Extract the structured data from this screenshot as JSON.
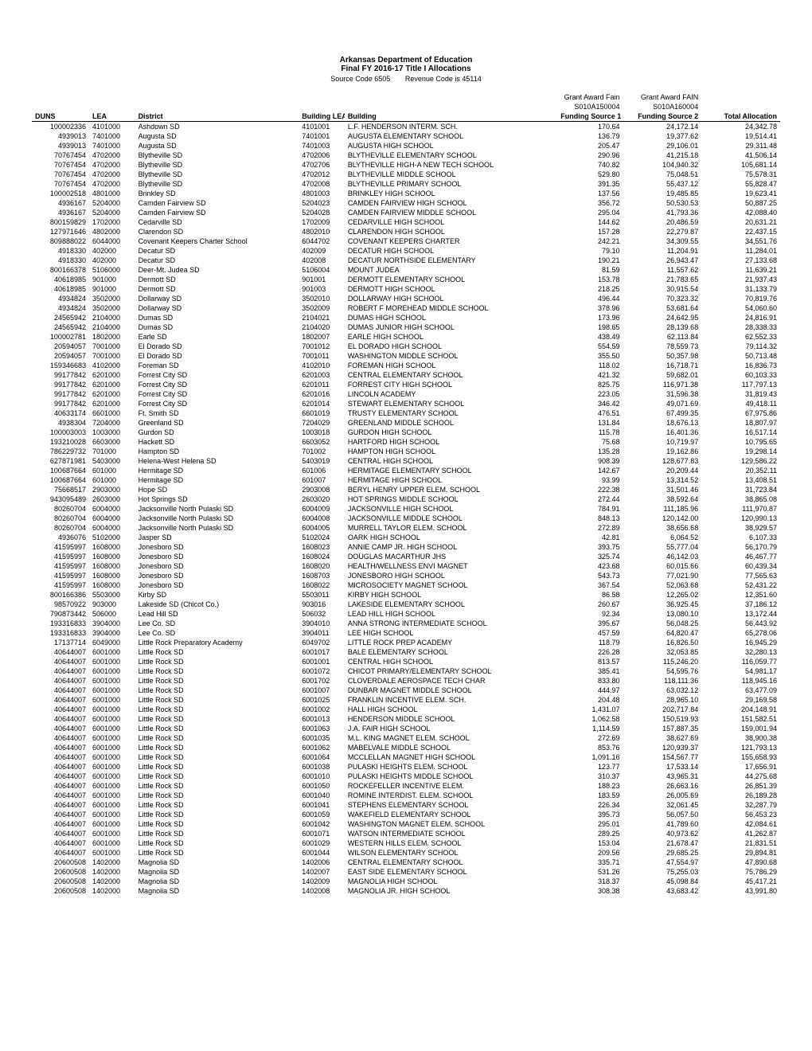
{
  "header": {
    "title": "Arkansas Department of Education",
    "subtitle": "Final FY 2016-17 Title I Allocations",
    "source_code_label": "Source Code 6505",
    "revenue_code_label": "Revenue Code is 45114"
  },
  "superheaders": {
    "col6": "Grant Award Fain",
    "col7": "Grant Award FAIN",
    "code6": "S010A150004",
    "code7": "S010A160004"
  },
  "columns": [
    "DUNS",
    "LEA",
    "District",
    "Building LEA",
    "Building",
    "Funding Source 1",
    "Funding Source 2",
    "Total Allocation"
  ],
  "rows": [
    [
      "100002336",
      "4101000",
      "Ashdown SD",
      "4101001",
      "L.F. HENDERSON INTERM. SCH.",
      "170.64",
      "24,172.14",
      "24,342.78"
    ],
    [
      "4939013",
      "7401000",
      "Augusta SD",
      "7401001",
      "AUGUSTA ELEMENTARY SCHOOL",
      "136.79",
      "19,377.62",
      "19,514.41"
    ],
    [
      "4939013",
      "7401000",
      "Augusta SD",
      "7401003",
      "AUGUSTA HIGH SCHOOL",
      "205.47",
      "29,106.01",
      "29,311.48"
    ],
    [
      "70767454",
      "4702000",
      "Blytheville SD",
      "4702006",
      "BLYTHEVILLE ELEMENTARY SCHOOL",
      "290.96",
      "41,215.18",
      "41,506.14"
    ],
    [
      "70767454",
      "4702000",
      "Blytheville SD",
      "4702706",
      "BLYTHEVILLE HIGH-A NEW TECH SCHOOL",
      "740.82",
      "104,940.32",
      "105,681.14"
    ],
    [
      "70767454",
      "4702000",
      "Blytheville SD",
      "4702012",
      "BLYTHEVILLE MIDDLE SCHOOL",
      "529.80",
      "75,048.51",
      "75,578.31"
    ],
    [
      "70767454",
      "4702000",
      "Blytheville SD",
      "4702008",
      "BLYTHEVILLE PRIMARY SCHOOL",
      "391.35",
      "55,437.12",
      "55,828.47"
    ],
    [
      "100002518",
      "4801000",
      "Brinkley SD",
      "4801003",
      "BRINKLEY HIGH SCHOOL",
      "137.56",
      "19,485.85",
      "19,623.41"
    ],
    [
      "4936167",
      "5204000",
      "Camden Fairview SD",
      "5204023",
      "CAMDEN FAIRVIEW HIGH SCHOOL",
      "356.72",
      "50,530.53",
      "50,887.25"
    ],
    [
      "4936167",
      "5204000",
      "Camden Fairview SD",
      "5204028",
      "CAMDEN FAIRVIEW MIDDLE SCHOOL",
      "295.04",
      "41,793.36",
      "42,088.40"
    ],
    [
      "800159829",
      "1702000",
      "Cedarville SD",
      "1702009",
      "CEDARVILLE HIGH SCHOOL",
      "144.62",
      "20,486.59",
      "20,631.21"
    ],
    [
      "127971646",
      "4802000",
      "Clarendon SD",
      "4802010",
      "CLARENDON HIGH SCHOOL",
      "157.28",
      "22,279.87",
      "22,437.15"
    ],
    [
      "809888022",
      "6044000",
      "Covenant Keepers Charter School",
      "6044702",
      "COVENANT KEEPERS CHARTER",
      "242.21",
      "34,309.55",
      "34,551.76"
    ],
    [
      "4918330",
      "402000",
      "Decatur SD",
      "402009",
      "DECATUR HIGH SCHOOL",
      "79.10",
      "11,204.91",
      "11,284.01"
    ],
    [
      "4918330",
      "402000",
      "Decatur SD",
      "402008",
      "DECATUR NORTHSIDE ELEMENTARY",
      "190.21",
      "26,943.47",
      "27,133.68"
    ],
    [
      "800166378",
      "5106000",
      "Deer-Mt. Judea SD",
      "5106004",
      "MOUNT JUDEA",
      "81.59",
      "11,557.62",
      "11,639.21"
    ],
    [
      "40618985",
      "901000",
      "Dermott SD",
      "901001",
      "DERMOTT ELEMENTARY SCHOOL",
      "153.78",
      "21,783.65",
      "21,937.43"
    ],
    [
      "40618985",
      "901000",
      "Dermott SD",
      "901003",
      "DERMOTT HIGH SCHOOL",
      "218.25",
      "30,915.54",
      "31,133.79"
    ],
    [
      "4934824",
      "3502000",
      "Dollarway SD",
      "3502010",
      "DOLLARWAY HIGH SCHOOL",
      "496.44",
      "70,323.32",
      "70,819.76"
    ],
    [
      "4934824",
      "3502000",
      "Dollarway SD",
      "3502009",
      "ROBERT F MOREHEAD MIDDLE SCHOOL",
      "378.96",
      "53,681.64",
      "54,060.60"
    ],
    [
      "24565942",
      "2104000",
      "Dumas SD",
      "2104021",
      "DUMAS HIGH SCHOOL",
      "173.96",
      "24,642.95",
      "24,816.91"
    ],
    [
      "24565942",
      "2104000",
      "Dumas SD",
      "2104020",
      "DUMAS JUNIOR HIGH SCHOOL",
      "198.65",
      "28,139.68",
      "28,338.33"
    ],
    [
      "100002781",
      "1802000",
      "Earle SD",
      "1802007",
      "EARLE HIGH SCHOOL",
      "438.49",
      "62,113.84",
      "62,552.33"
    ],
    [
      "20594057",
      "7001000",
      "El Dorado SD",
      "7001012",
      "EL DORADO HIGH SCHOOL",
      "554.59",
      "78,559.73",
      "79,114.32"
    ],
    [
      "20594057",
      "7001000",
      "El Dorado SD",
      "7001011",
      "WASHINGTON MIDDLE SCHOOL",
      "355.50",
      "50,357.98",
      "50,713.48"
    ],
    [
      "159346683",
      "4102000",
      "Foreman SD",
      "4102010",
      "FOREMAN HIGH SCHOOL",
      "118.02",
      "16,718.71",
      "16,836.73"
    ],
    [
      "99177842",
      "6201000",
      "Forrest City SD",
      "6201003",
      "CENTRAL ELEMENTARY SCHOOL",
      "421.32",
      "59,682.01",
      "60,103.33"
    ],
    [
      "99177842",
      "6201000",
      "Forrest City SD",
      "6201011",
      "FORREST CITY HIGH SCHOOL",
      "825.75",
      "116,971.38",
      "117,797.13"
    ],
    [
      "99177842",
      "6201000",
      "Forrest City SD",
      "6201016",
      "LINCOLN ACADEMY",
      "223.05",
      "31,596.38",
      "31,819.43"
    ],
    [
      "99177842",
      "6201000",
      "Forrest City SD",
      "6201014",
      "STEWART ELEMENTARY SCHOOL",
      "346.42",
      "49,071.69",
      "49,418.11"
    ],
    [
      "40633174",
      "6601000",
      "Ft. Smith SD",
      "6601019",
      "TRUSTY ELEMENTARY SCHOOL",
      "476.51",
      "67,499.35",
      "67,975.86"
    ],
    [
      "4938304",
      "7204000",
      "Greenland SD",
      "7204029",
      "GREENLAND MIDDLE SCHOOL",
      "131.84",
      "18,676.13",
      "18,807.97"
    ],
    [
      "100003003",
      "1003000",
      "Gurdon SD",
      "1003018",
      "GURDON HIGH SCHOOL",
      "115.78",
      "16,401.36",
      "16,517.14"
    ],
    [
      "193210028",
      "6603000",
      "Hackett SD",
      "6603052",
      "HARTFORD HIGH SCHOOL",
      "75.68",
      "10,719.97",
      "10,795.65"
    ],
    [
      "786229732",
      "701000",
      "Hampton SD",
      "701002",
      "HAMPTON HIGH SCHOOL",
      "135.28",
      "19,162.86",
      "19,298.14"
    ],
    [
      "627871981",
      "5403000",
      "Helena-West Helena SD",
      "5403019",
      "CENTRAL HIGH SCHOOL",
      "908.39",
      "128,677.83",
      "129,586.22"
    ],
    [
      "100687664",
      "601000",
      "Hermitage SD",
      "601006",
      "HERMITAGE ELEMENTARY SCHOOL",
      "142.67",
      "20,209.44",
      "20,352.11"
    ],
    [
      "100687664",
      "601000",
      "Hermitage SD",
      "601007",
      "HERMITAGE HIGH SCHOOL",
      "93.99",
      "13,314.52",
      "13,408.51"
    ],
    [
      "75668517",
      "2903000",
      "Hope SD",
      "2903008",
      "BERYL HENRY UPPER ELEM. SCHOOL",
      "222.38",
      "31,501.46",
      "31,723.84"
    ],
    [
      "943095489",
      "2603000",
      "Hot Springs SD",
      "2603020",
      "HOT SPRINGS MIDDLE SCHOOL",
      "272.44",
      "38,592.64",
      "38,865.08"
    ],
    [
      "80260704",
      "6004000",
      "Jacksonville North Pulaski SD",
      "6004009",
      "JACKSONVILLE HIGH SCHOOL",
      "784.91",
      "111,185.96",
      "111,970.87"
    ],
    [
      "80260704",
      "6004000",
      "Jacksonville North Pulaski SD",
      "6004008",
      "JACKSONVILLE MIDDLE SCHOOL",
      "848.13",
      "120,142.00",
      "120,990.13"
    ],
    [
      "80260704",
      "6004000",
      "Jacksonville North Pulaski SD",
      "6004005",
      "MURRELL TAYLOR ELEM. SCHOOL",
      "272.89",
      "38,656.68",
      "38,929.57"
    ],
    [
      "4936076",
      "5102000",
      "Jasper SD",
      "5102024",
      "OARK HIGH SCHOOL",
      "42.81",
      "6,064.52",
      "6,107.33"
    ],
    [
      "41595997",
      "1608000",
      "Jonesboro SD",
      "1608023",
      "ANNIE CAMP JR. HIGH SCHOOL",
      "393.75",
      "55,777.04",
      "56,170.79"
    ],
    [
      "41595997",
      "1608000",
      "Jonesboro SD",
      "1608024",
      "DOUGLAS MACARTHUR JHS",
      "325.74",
      "46,142.03",
      "46,467.77"
    ],
    [
      "41595997",
      "1608000",
      "Jonesboro SD",
      "1608020",
      "HEALTH/WELLNESS ENVI MAGNET",
      "423.68",
      "60,015.66",
      "60,439.34"
    ],
    [
      "41595997",
      "1608000",
      "Jonesboro SD",
      "1608703",
      "JONESBORO HIGH SCHOOL",
      "543.73",
      "77,021.90",
      "77,565.63"
    ],
    [
      "41595997",
      "1608000",
      "Jonesboro SD",
      "1608022",
      "MICROSOCIETY MAGNET SCHOOL",
      "367.54",
      "52,063.68",
      "52,431.22"
    ],
    [
      "800166386",
      "5503000",
      "Kirby SD",
      "5503011",
      "KIRBY HIGH SCHOOL",
      "86.58",
      "12,265.02",
      "12,351.60"
    ],
    [
      "98570922",
      "903000",
      "Lakeside SD (Chicot Co.)",
      "903016",
      "LAKESIDE ELEMENTARY SCHOOL",
      "260.67",
      "36,925.45",
      "37,186.12"
    ],
    [
      "790873442",
      "506000",
      "Lead Hill SD",
      "506032",
      "LEAD HILL HIGH SCHOOL",
      "92.34",
      "13,080.10",
      "13,172.44"
    ],
    [
      "193316833",
      "3904000",
      "Lee Co. SD",
      "3904010",
      "ANNA STRONG INTERMEDIATE SCHOOL",
      "395.67",
      "56,048.25",
      "56,443.92"
    ],
    [
      "193316833",
      "3904000",
      "Lee Co. SD",
      "3904011",
      "LEE HIGH SCHOOL",
      "457.59",
      "64,820.47",
      "65,278.06"
    ],
    [
      "17137714",
      "6049000",
      "Little Rock Preparatory Academy",
      "6049702",
      "LITTLE ROCK PREP ACADEMY",
      "118.79",
      "16,826.50",
      "16,945.29"
    ],
    [
      "40644007",
      "6001000",
      "Little Rock SD",
      "6001017",
      "BALE ELEMENTARY SCHOOL",
      "226.28",
      "32,053.85",
      "32,280.13"
    ],
    [
      "40644007",
      "6001000",
      "Little Rock SD",
      "6001001",
      "CENTRAL HIGH SCHOOL",
      "813.57",
      "115,246.20",
      "116,059.77"
    ],
    [
      "40644007",
      "6001000",
      "Little Rock SD",
      "6001072",
      "CHICOT PRIMARY/ELEMENTARY SCHOOL",
      "385.41",
      "54,595.76",
      "54,981.17"
    ],
    [
      "40644007",
      "6001000",
      "Little Rock SD",
      "6001702",
      "CLOVERDALE AEROSPACE TECH CHAR",
      "833.80",
      "118,111.36",
      "118,945.16"
    ],
    [
      "40644007",
      "6001000",
      "Little Rock SD",
      "6001007",
      "DUNBAR MAGNET MIDDLE SCHOOL",
      "444.97",
      "63,032.12",
      "63,477.09"
    ],
    [
      "40644007",
      "6001000",
      "Little Rock SD",
      "6001025",
      "FRANKLIN INCENTIVE ELEM. SCH.",
      "204.48",
      "28,965.10",
      "29,169.58"
    ],
    [
      "40644007",
      "6001000",
      "Little Rock SD",
      "6001002",
      "HALL HIGH SCHOOL",
      "1,431.07",
      "202,717.84",
      "204,148.91"
    ],
    [
      "40644007",
      "6001000",
      "Little Rock SD",
      "6001013",
      "HENDERSON MIDDLE SCHOOL",
      "1,062.58",
      "150,519.93",
      "151,582.51"
    ],
    [
      "40644007",
      "6001000",
      "Little Rock SD",
      "6001063",
      "J.A. FAIR HIGH SCHOOL",
      "1,114.59",
      "157,887.35",
      "159,001.94"
    ],
    [
      "40644007",
      "6001000",
      "Little Rock SD",
      "6001035",
      "M.L. KING MAGNET ELEM. SCHOOL",
      "272.69",
      "38,627.69",
      "38,900.38"
    ],
    [
      "40644007",
      "6001000",
      "Little Rock SD",
      "6001062",
      "MABELVALE MIDDLE SCHOOL",
      "853.76",
      "120,939.37",
      "121,793.13"
    ],
    [
      "40644007",
      "6001000",
      "Little Rock SD",
      "6001064",
      "MCCLELLAN MAGNET HIGH SCHOOL",
      "1,091.16",
      "154,567.77",
      "155,658.93"
    ],
    [
      "40644007",
      "6001000",
      "Little Rock SD",
      "6001038",
      "PULASKI HEIGHTS ELEM. SCHOOL",
      "123.77",
      "17,533.14",
      "17,656.91"
    ],
    [
      "40644007",
      "6001000",
      "Little Rock SD",
      "6001010",
      "PULASKI HEIGHTS MIDDLE SCHOOL",
      "310.37",
      "43,965.31",
      "44,275.68"
    ],
    [
      "40644007",
      "6001000",
      "Little Rock SD",
      "6001050",
      "ROCKEFELLER INCENTIVE ELEM.",
      "188.23",
      "26,663.16",
      "26,851.39"
    ],
    [
      "40644007",
      "6001000",
      "Little Rock SD",
      "6001040",
      "ROMINE INTERDIST. ELEM. SCHOOL",
      "183.59",
      "26,005.69",
      "26,189.28"
    ],
    [
      "40644007",
      "6001000",
      "Little Rock SD",
      "6001041",
      "STEPHENS ELEMENTARY SCHOOL",
      "226.34",
      "32,061.45",
      "32,287.79"
    ],
    [
      "40644007",
      "6001000",
      "Little Rock SD",
      "6001059",
      "WAKEFIELD ELEMENTARY SCHOOL",
      "395.73",
      "56,057.50",
      "56,453.23"
    ],
    [
      "40644007",
      "6001000",
      "Little Rock SD",
      "6001042",
      "WASHINGTON MAGNET ELEM. SCHOOL",
      "295.01",
      "41,789.60",
      "42,084.61"
    ],
    [
      "40644007",
      "6001000",
      "Little Rock SD",
      "6001071",
      "WATSON INTERMEDIATE SCHOOL",
      "289.25",
      "40,973.62",
      "41,262.87"
    ],
    [
      "40644007",
      "6001000",
      "Little Rock SD",
      "6001029",
      "WESTERN HILLS ELEM. SCHOOL",
      "153.04",
      "21,678.47",
      "21,831.51"
    ],
    [
      "40644007",
      "6001000",
      "Little Rock SD",
      "6001044",
      "WILSON ELEMENTARY SCHOOL",
      "209.56",
      "29,685.25",
      "29,894.81"
    ],
    [
      "20600508",
      "1402000",
      "Magnolia SD",
      "1402006",
      "CENTRAL ELEMENTARY SCHOOL",
      "335.71",
      "47,554.97",
      "47,890.68"
    ],
    [
      "20600508",
      "1402000",
      "Magnolia SD",
      "1402007",
      "EAST SIDE ELEMENTARY SCHOOL",
      "531.26",
      "75,255.03",
      "75,786.29"
    ],
    [
      "20600508",
      "1402000",
      "Magnolia SD",
      "1402009",
      "MAGNOLIA HIGH SCHOOL",
      "318.37",
      "45,098.84",
      "45,417.21"
    ],
    [
      "20600508",
      "1402000",
      "Magnolia SD",
      "1402008",
      "MAGNOLIA JR. HIGH SCHOOL",
      "308.38",
      "43,683.42",
      "43,991.80"
    ]
  ]
}
